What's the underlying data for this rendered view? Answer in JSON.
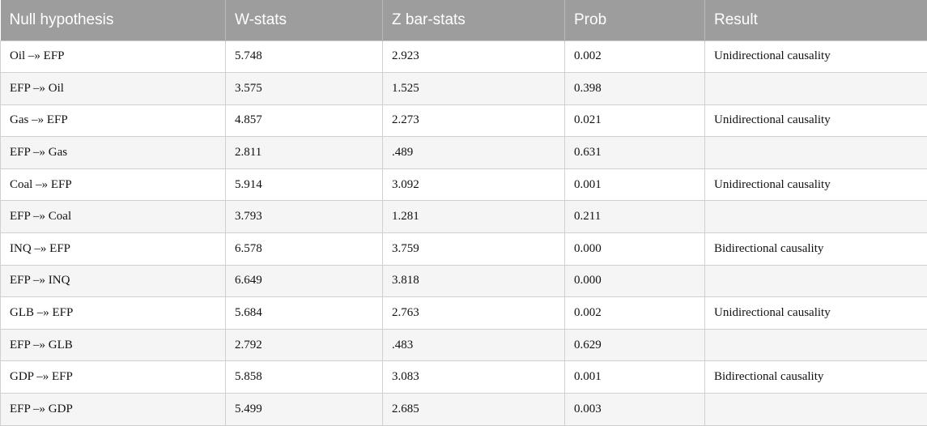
{
  "table": {
    "headers": [
      "Null hypothesis",
      "W-stats",
      "Z bar-stats",
      "Prob",
      "Result"
    ],
    "rows": [
      [
        "Oil –» EFP",
        "5.748",
        "2.923",
        "0.002",
        "Unidirectional causality"
      ],
      [
        "EFP –» Oil",
        "3.575",
        "1.525",
        "0.398",
        ""
      ],
      [
        "Gas –» EFP",
        "4.857",
        "2.273",
        "0.021",
        "Unidirectional causality"
      ],
      [
        "EFP –» Gas",
        "2.811",
        ".489",
        "0.631",
        ""
      ],
      [
        "Coal –» EFP",
        "5.914",
        "3.092",
        "0.001",
        "Unidirectional causality"
      ],
      [
        "EFP –» Coal",
        "3.793",
        "1.281",
        "0.211",
        ""
      ],
      [
        "INQ –» EFP",
        "6.578",
        "3.759",
        "0.000",
        "Bidirectional causality"
      ],
      [
        "EFP –» INQ",
        "6.649",
        "3.818",
        "0.000",
        ""
      ],
      [
        "GLB –» EFP",
        "5.684",
        "2.763",
        "0.002",
        "Unidirectional causality"
      ],
      [
        "EFP –» GLB",
        "2.792",
        ".483",
        "0.629",
        ""
      ],
      [
        "GDP –» EFP",
        "5.858",
        "3.083",
        "0.001",
        "Bidirectional causality"
      ],
      [
        "EFP –» GDP",
        "5.499",
        "2.685",
        "0.003",
        ""
      ]
    ]
  }
}
